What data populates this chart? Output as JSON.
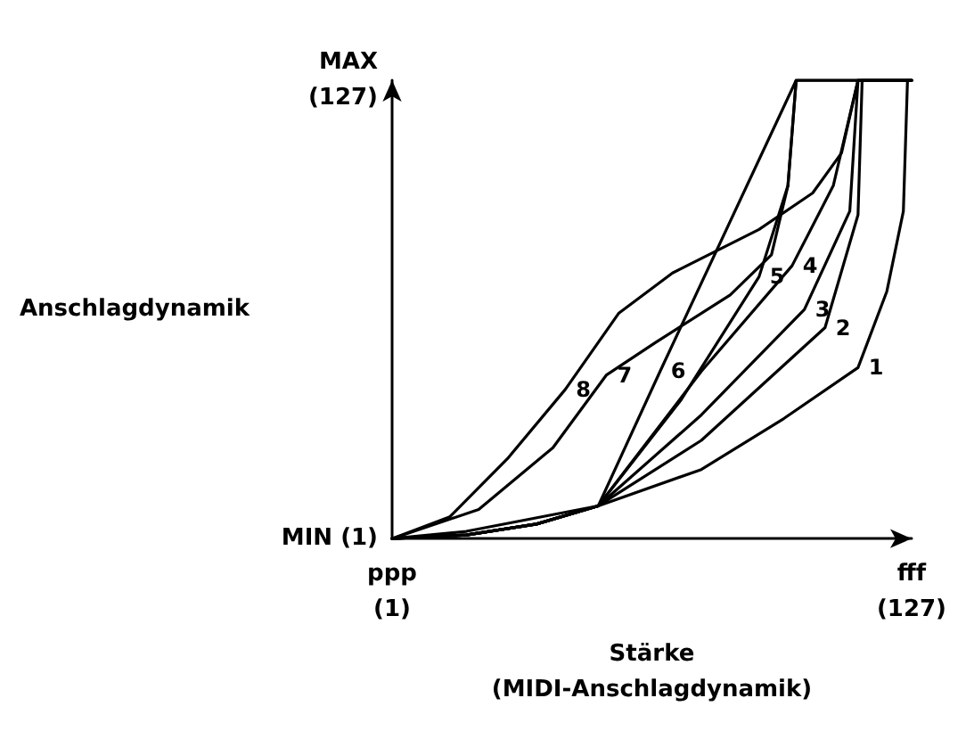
{
  "chart_data": {
    "type": "line",
    "xlabel": "Stärke\n(MIDI-Anschlagdynamik)",
    "ylabel": "Anschlagdynamik",
    "xlim": [
      1,
      127
    ],
    "ylim": [
      1,
      127
    ],
    "xticks": [
      {
        "value": 1,
        "label": "ppp\n(1)"
      },
      {
        "value": 127,
        "label": "fff\n(127)"
      }
    ],
    "yticks": [
      {
        "value": 1,
        "label": "MIN (1)"
      },
      {
        "value": 127,
        "label": "MAX\n(127)"
      }
    ],
    "grid": false,
    "marker": "none",
    "line_style": "solid",
    "series": [
      {
        "color": "#000000",
        "x": [
          1,
          19,
          51,
          76,
          96,
          114,
          121,
          125,
          126,
          127
        ],
        "values": [
          1,
          3,
          10,
          20,
          34,
          48,
          69,
          91,
          127,
          127
        ]
      },
      {
        "color": "#000000",
        "x": [
          1,
          19,
          36,
          51,
          76,
          106,
          114,
          115,
          127
        ],
        "values": [
          1,
          2,
          5,
          10,
          28,
          59,
          90,
          127,
          127
        ]
      },
      {
        "color": "#000000",
        "x": [
          1,
          19,
          36,
          51,
          76,
          101,
          112,
          114,
          127
        ],
        "values": [
          1,
          2,
          5,
          10,
          35,
          64,
          91,
          127,
          127
        ]
      },
      {
        "color": "#000000",
        "x": [
          1,
          19,
          36,
          51,
          76,
          98,
          108,
          114,
          127
        ],
        "values": [
          1,
          2,
          5,
          10,
          47,
          76,
          98,
          127,
          127
        ]
      },
      {
        "color": "#000000",
        "x": [
          1,
          19,
          36,
          51,
          71,
          90,
          97,
          99,
          127
        ],
        "values": [
          1,
          2,
          5,
          10,
          39,
          73,
          98,
          127,
          127
        ]
      },
      {
        "color": "#000000",
        "x": [
          1,
          19,
          36,
          51,
          66,
          99,
          127
        ],
        "values": [
          1,
          2,
          5,
          10,
          47,
          127,
          127
        ]
      },
      {
        "color": "#000000",
        "x": [
          1,
          22,
          40,
          53,
          65,
          83,
          93,
          97,
          99,
          127
        ],
        "values": [
          1,
          9,
          26,
          46,
          55,
          68,
          79,
          98,
          127,
          127
        ]
      },
      {
        "color": "#000000",
        "x": [
          1,
          15,
          29,
          43,
          56,
          69,
          90,
          103,
          110,
          114,
          127
        ],
        "values": [
          1,
          7,
          23,
          42,
          63,
          74,
          86,
          96,
          107,
          127,
          127
        ]
      }
    ],
    "annotations": [
      {
        "text": "1",
        "x": 114,
        "y": 48
      },
      {
        "text": "2",
        "x": 106,
        "y": 59
      },
      {
        "text": "3",
        "x": 101,
        "y": 64
      },
      {
        "text": "4",
        "x": 98,
        "y": 76
      },
      {
        "text": "5",
        "x": 90,
        "y": 73
      },
      {
        "text": "6",
        "x": 66,
        "y": 47
      },
      {
        "text": "7",
        "x": 53,
        "y": 46
      },
      {
        "text": "8",
        "x": 43,
        "y": 42
      }
    ]
  }
}
